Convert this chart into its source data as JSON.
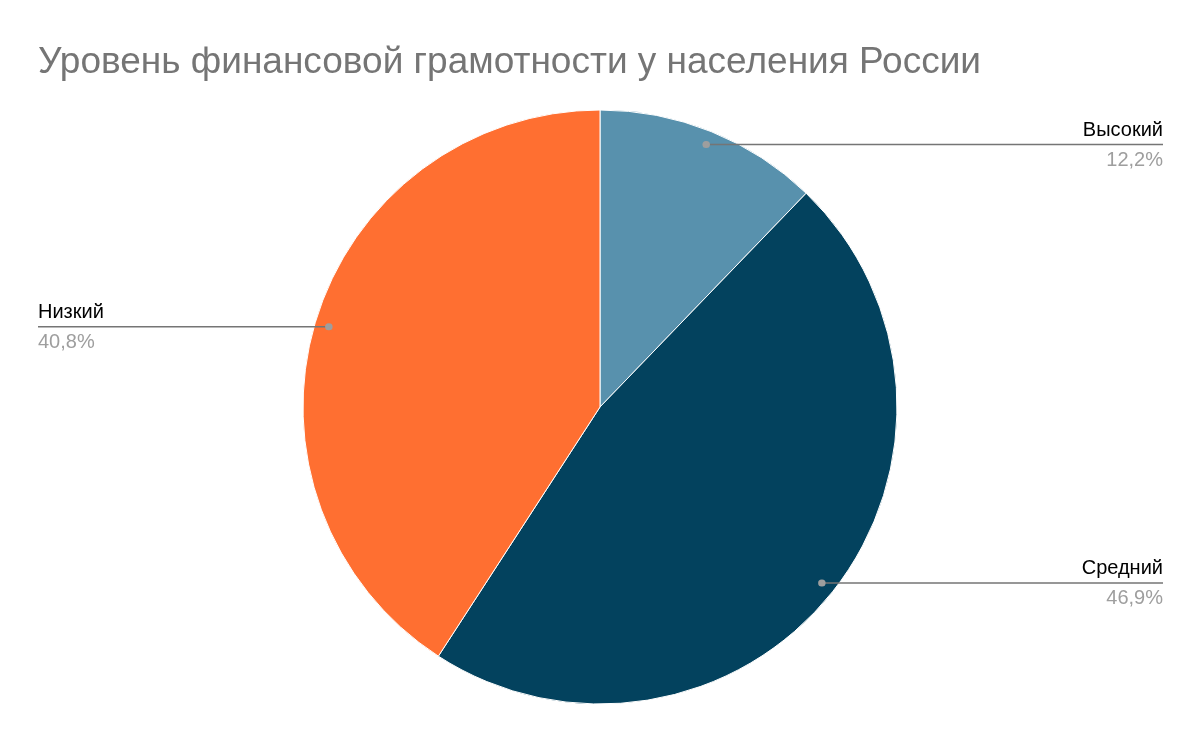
{
  "chart_data": {
    "type": "pie",
    "title": "Уровень финансовой грамотности у населения России",
    "categories": [
      "Высокий",
      "Средний",
      "Низкий"
    ],
    "values": [
      12.2,
      46.9,
      40.8
    ],
    "colors": [
      "#5891ad",
      "#03425e",
      "#ff6f31"
    ],
    "value_labels": [
      "12,2%",
      "46,9%",
      "40,8%"
    ]
  }
}
